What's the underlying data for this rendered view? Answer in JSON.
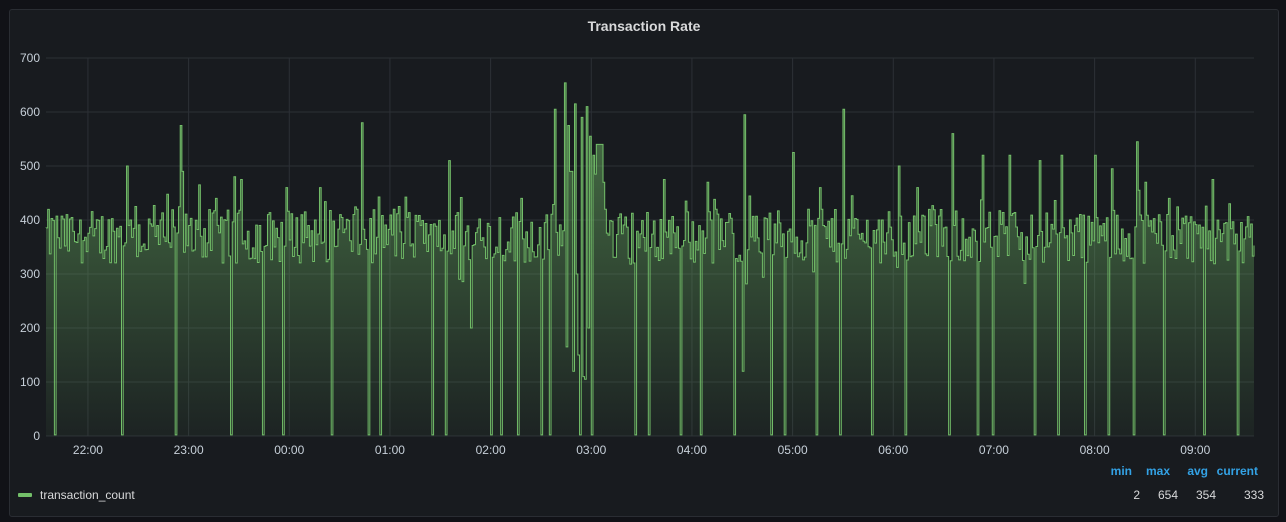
{
  "panel": {
    "title": "Transaction Rate"
  },
  "legend": {
    "series_name": "transaction_count",
    "headers": [
      "min",
      "max",
      "avg",
      "current"
    ],
    "values": [
      "2",
      "654",
      "354",
      "333"
    ]
  },
  "colors": {
    "series": "#73bf69",
    "grid": "#2c3036",
    "axis_text": "#c7d0d9",
    "legend_header": "#33a2e5"
  },
  "chart_data": {
    "type": "area",
    "title": "Transaction Rate",
    "xlabel": "",
    "ylabel": "",
    "ylim": [
      0,
      700
    ],
    "y_ticks": [
      "0",
      "100",
      "200",
      "300",
      "400",
      "500",
      "600",
      "700"
    ],
    "x_ticks": [
      "22:00",
      "23:00",
      "00:00",
      "01:00",
      "02:00",
      "03:00",
      "04:00",
      "05:00",
      "06:00",
      "07:00",
      "08:00",
      "09:00"
    ],
    "x_start": "21:35",
    "x_end": "09:35",
    "sample_minutes": 1,
    "grid": true,
    "legend_placement": "bottom",
    "series": [
      {
        "name": "transaction_count",
        "stats": {
          "min": 2,
          "max": 654,
          "avg": 354,
          "current": 333
        },
        "baseline_range": [
          300,
          420
        ],
        "spikes": [
          {
            "t": "21:40",
            "v": 2
          },
          {
            "t": "21:47",
            "v": 410
          },
          {
            "t": "21:55",
            "v": 400
          },
          {
            "t": "22:20",
            "v": 2
          },
          {
            "t": "22:23",
            "v": 500
          },
          {
            "t": "22:28",
            "v": 425
          },
          {
            "t": "22:43",
            "v": 400
          },
          {
            "t": "22:52",
            "v": 2
          },
          {
            "t": "22:55",
            "v": 575
          },
          {
            "t": "22:56",
            "v": 490
          },
          {
            "t": "23:06",
            "v": 465
          },
          {
            "t": "23:16",
            "v": 440
          },
          {
            "t": "23:25",
            "v": 2
          },
          {
            "t": "23:27",
            "v": 480
          },
          {
            "t": "23:31",
            "v": 475
          },
          {
            "t": "23:44",
            "v": 2
          },
          {
            "t": "23:56",
            "v": 2
          },
          {
            "t": "23:58",
            "v": 460
          },
          {
            "t": "00:09",
            "v": 415
          },
          {
            "t": "00:18",
            "v": 460
          },
          {
            "t": "00:25",
            "v": 2
          },
          {
            "t": "00:30",
            "v": 410
          },
          {
            "t": "00:43",
            "v": 580
          },
          {
            "t": "00:47",
            "v": 2
          },
          {
            "t": "00:54",
            "v": 2
          },
          {
            "t": "01:02",
            "v": 420
          },
          {
            "t": "01:18",
            "v": 390
          },
          {
            "t": "01:25",
            "v": 2
          },
          {
            "t": "01:33",
            "v": 2
          },
          {
            "t": "01:35",
            "v": 510
          },
          {
            "t": "01:48",
            "v": 200
          },
          {
            "t": "02:00",
            "v": 2
          },
          {
            "t": "02:06",
            "v": 2
          },
          {
            "t": "02:16",
            "v": 2
          },
          {
            "t": "02:18",
            "v": 440
          },
          {
            "t": "02:30",
            "v": 2
          },
          {
            "t": "02:35",
            "v": 2
          },
          {
            "t": "02:38",
            "v": 605
          },
          {
            "t": "02:43",
            "v": 380
          },
          {
            "t": "02:44",
            "v": 654
          },
          {
            "t": "02:45",
            "v": 165
          },
          {
            "t": "02:46",
            "v": 575
          },
          {
            "t": "02:47",
            "v": 490
          },
          {
            "t": "02:48",
            "v": 490
          },
          {
            "t": "02:49",
            "v": 120
          },
          {
            "t": "02:50",
            "v": 615
          },
          {
            "t": "02:51",
            "v": 300
          },
          {
            "t": "02:52",
            "v": 150
          },
          {
            "t": "02:53",
            "v": 2
          },
          {
            "t": "02:54",
            "v": 590
          },
          {
            "t": "02:55",
            "v": 110
          },
          {
            "t": "02:56",
            "v": 105
          },
          {
            "t": "02:57",
            "v": 610
          },
          {
            "t": "02:58",
            "v": 200
          },
          {
            "t": "02:59",
            "v": 555
          },
          {
            "t": "03:00",
            "v": 2
          },
          {
            "t": "03:01",
            "v": 520
          },
          {
            "t": "03:02",
            "v": 485
          },
          {
            "t": "03:03",
            "v": 540
          },
          {
            "t": "03:04",
            "v": 540
          },
          {
            "t": "03:05",
            "v": 540
          },
          {
            "t": "03:06",
            "v": 540
          },
          {
            "t": "03:07",
            "v": 470
          },
          {
            "t": "03:08",
            "v": 420
          },
          {
            "t": "03:26",
            "v": 2
          },
          {
            "t": "03:34",
            "v": 2
          },
          {
            "t": "03:43",
            "v": 475
          },
          {
            "t": "03:53",
            "v": 2
          },
          {
            "t": "03:56",
            "v": 435
          },
          {
            "t": "04:05",
            "v": 2
          },
          {
            "t": "04:09",
            "v": 470
          },
          {
            "t": "04:14",
            "v": 420
          },
          {
            "t": "04:25",
            "v": 2
          },
          {
            "t": "04:30",
            "v": 120
          },
          {
            "t": "04:31",
            "v": 595
          },
          {
            "t": "04:47",
            "v": 2
          },
          {
            "t": "04:55",
            "v": 2
          },
          {
            "t": "05:00",
            "v": 525
          },
          {
            "t": "05:14",
            "v": 2
          },
          {
            "t": "05:16",
            "v": 460
          },
          {
            "t": "05:28",
            "v": 2
          },
          {
            "t": "05:30",
            "v": 605
          },
          {
            "t": "05:35",
            "v": 445
          },
          {
            "t": "05:47",
            "v": 2
          },
          {
            "t": "05:53",
            "v": 400
          },
          {
            "t": "06:03",
            "v": 500
          },
          {
            "t": "06:07",
            "v": 2
          },
          {
            "t": "06:14",
            "v": 460
          },
          {
            "t": "06:33",
            "v": 2
          },
          {
            "t": "06:35",
            "v": 560
          },
          {
            "t": "06:50",
            "v": 2
          },
          {
            "t": "06:53",
            "v": 520
          },
          {
            "t": "06:59",
            "v": 2
          },
          {
            "t": "07:09",
            "v": 520
          },
          {
            "t": "07:24",
            "v": 2
          },
          {
            "t": "07:27",
            "v": 510
          },
          {
            "t": "07:38",
            "v": 2
          },
          {
            "t": "07:40",
            "v": 520
          },
          {
            "t": "07:54",
            "v": 2
          },
          {
            "t": "08:00",
            "v": 520
          },
          {
            "t": "08:08",
            "v": 2
          },
          {
            "t": "08:10",
            "v": 495
          },
          {
            "t": "08:23",
            "v": 2
          },
          {
            "t": "08:25",
            "v": 545
          },
          {
            "t": "08:26",
            "v": 455
          },
          {
            "t": "08:30",
            "v": 470
          },
          {
            "t": "08:41",
            "v": 2
          },
          {
            "t": "08:44",
            "v": 440
          },
          {
            "t": "08:56",
            "v": 395
          },
          {
            "t": "09:05",
            "v": 2
          },
          {
            "t": "09:10",
            "v": 475
          },
          {
            "t": "09:20",
            "v": 430
          },
          {
            "t": "09:25",
            "v": 2
          },
          {
            "t": "09:34",
            "v": 333
          }
        ]
      }
    ]
  }
}
